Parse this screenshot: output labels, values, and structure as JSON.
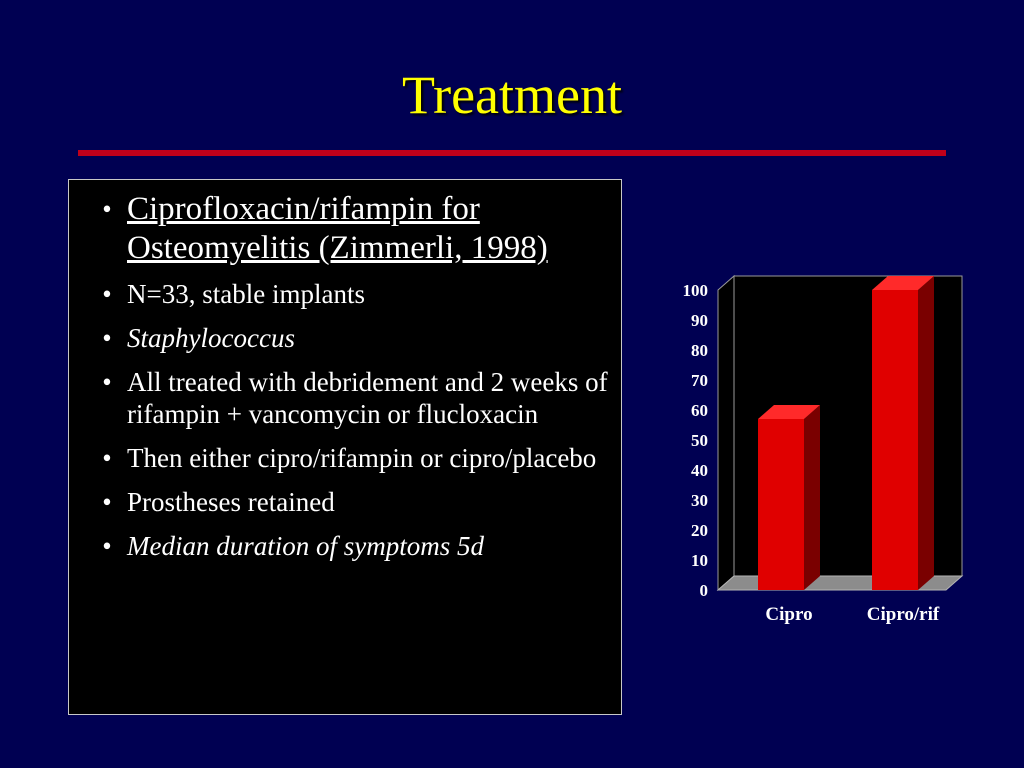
{
  "slide": {
    "title": "Treatment",
    "bullets": [
      {
        "text": "Ciprofloxacin/rifampin for Osteomyelitis (Zimmerli, 1998)",
        "style": "heading-underlined"
      },
      {
        "text": "N=33, stable implants",
        "style": "normal"
      },
      {
        "text": "Staphylococcus",
        "style": "italic"
      },
      {
        "text": "All treated with debridement and 2 weeks of rifampin + vancomycin or flucloxacin",
        "style": "normal"
      },
      {
        "text": "Then either cipro/rifampin or cipro/placebo",
        "style": "normal"
      },
      {
        "text": "Prostheses retained",
        "style": "normal"
      },
      {
        "text": "Median duration of symptoms 5d",
        "style": "italic"
      }
    ],
    "bullet_glyph": "•"
  },
  "colors": {
    "background": "#000052",
    "title": "#ffff00",
    "rule": "#c0001a",
    "bar": "#e00000",
    "bar_top": "#ff2a2a",
    "bar_side": "#7a0000",
    "text": "#ffffff"
  },
  "chart_data": {
    "type": "bar",
    "categories": [
      "Cipro",
      "Cipro/rif"
    ],
    "values": [
      57,
      100
    ],
    "ylim": [
      0,
      100
    ],
    "yticks": [
      0,
      10,
      20,
      30,
      40,
      50,
      60,
      70,
      80,
      90,
      100
    ],
    "title": "",
    "xlabel": "",
    "ylabel": "",
    "grid": false,
    "legend": "none",
    "style": "3d"
  }
}
